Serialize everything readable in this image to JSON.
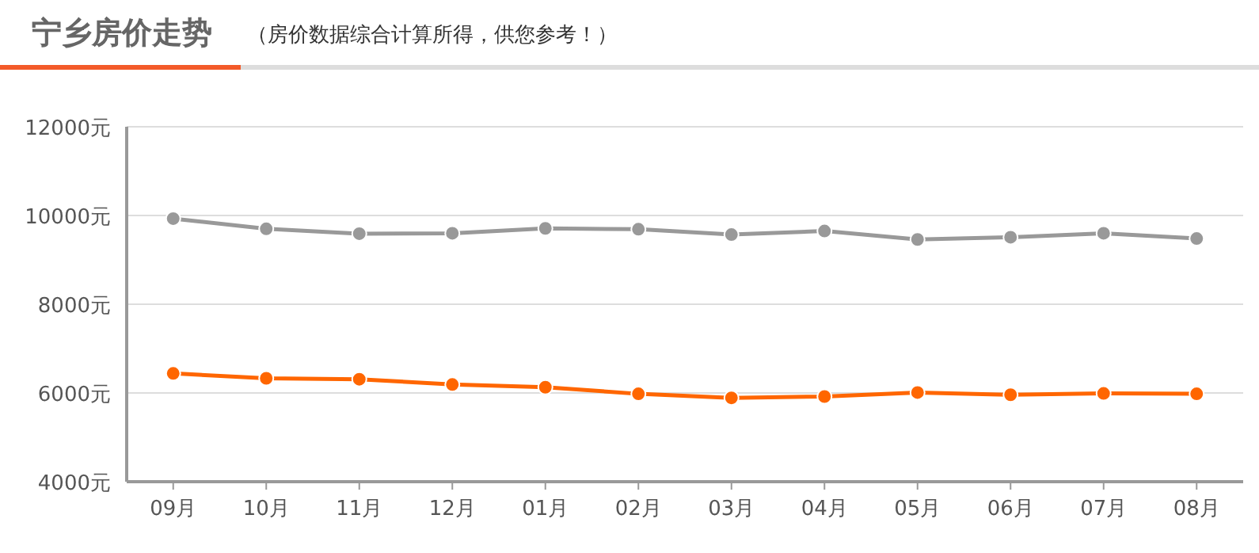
{
  "chart_data": {
    "type": "line",
    "title": "宁乡房价走势",
    "subtitle": "（房价数据综合计算所得，供您参考！）",
    "categories": [
      "09月",
      "10月",
      "11月",
      "12月",
      "01月",
      "02月",
      "03月",
      "04月",
      "05月",
      "06月",
      "07月",
      "08月"
    ],
    "series": [
      {
        "color": "#999999",
        "values": [
          9930,
          9700,
          9590,
          9600,
          9710,
          9690,
          9570,
          9650,
          9460,
          9510,
          9600,
          9480
        ]
      },
      {
        "color": "#ff6600",
        "values": [
          6440,
          6330,
          6310,
          6190,
          6130,
          5980,
          5890,
          5920,
          6010,
          5960,
          5990,
          5980
        ]
      }
    ],
    "ylim": [
      4000,
      12000
    ],
    "yticks": [
      {
        "value": 4000,
        "label": "4000元"
      },
      {
        "value": 6000,
        "label": "6000元"
      },
      {
        "value": 8000,
        "label": "8000元"
      },
      {
        "value": 10000,
        "label": "10000元"
      },
      {
        "value": 12000,
        "label": "12000元"
      }
    ],
    "grid": "y",
    "marker": "circle",
    "line_style": "solid"
  }
}
